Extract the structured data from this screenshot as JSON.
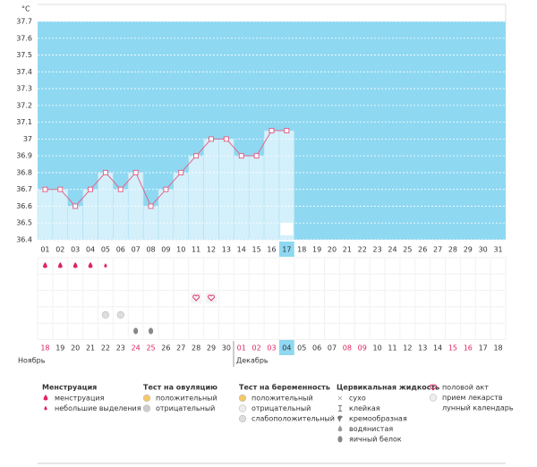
{
  "chart_data": {
    "type": "line",
    "y_label": "°C",
    "categories": [
      "01",
      "02",
      "03",
      "04",
      "05",
      "06",
      "07",
      "08",
      "09",
      "10",
      "11",
      "12",
      "13",
      "14",
      "15",
      "16",
      "17",
      "18",
      "19",
      "20",
      "21",
      "22",
      "23",
      "24",
      "25",
      "26",
      "27",
      "28",
      "29",
      "30",
      "31"
    ],
    "values": [
      36.7,
      36.7,
      36.6,
      36.7,
      36.8,
      36.7,
      36.8,
      36.6,
      36.7,
      36.8,
      36.9,
      37.0,
      37.0,
      36.9,
      36.9,
      37.05,
      37.05,
      null,
      null,
      null,
      null,
      null,
      null,
      null,
      null,
      null,
      null,
      null,
      null,
      null,
      null
    ],
    "color": "#e0668a",
    "bar_color": "#d4f0fb",
    "background": "#8fd8f2",
    "ylim": [
      36.4,
      37.7
    ],
    "yticks": [
      36.4,
      36.5,
      36.6,
      36.7,
      36.8,
      36.9,
      37,
      37.1,
      37.2,
      37.3,
      37.4,
      37.5,
      37.6,
      37.7
    ],
    "grid": true,
    "today_index": 16,
    "dates": [
      {
        "label": "18",
        "holiday": true
      },
      {
        "label": "19"
      },
      {
        "label": "20"
      },
      {
        "label": "21"
      },
      {
        "label": "22"
      },
      {
        "label": "23"
      },
      {
        "label": "24",
        "holiday": true
      },
      {
        "label": "25",
        "holiday": true
      },
      {
        "label": "26"
      },
      {
        "label": "27"
      },
      {
        "label": "28"
      },
      {
        "label": "29"
      },
      {
        "label": "30"
      },
      {
        "label": "01",
        "holiday": true
      },
      {
        "label": "02",
        "holiday": true
      },
      {
        "label": "03",
        "holiday": true
      },
      {
        "label": "04"
      },
      {
        "label": "05"
      },
      {
        "label": "06"
      },
      {
        "label": "07"
      },
      {
        "label": "08",
        "holiday": true
      },
      {
        "label": "09",
        "holiday": true
      },
      {
        "label": "10"
      },
      {
        "label": "11"
      },
      {
        "label": "12"
      },
      {
        "label": "13"
      },
      {
        "label": "14"
      },
      {
        "label": "15",
        "holiday": true
      },
      {
        "label": "16",
        "holiday": true
      },
      {
        "label": "17"
      },
      {
        "label": "18"
      }
    ],
    "months": [
      "Ноябрь",
      "Декабрь"
    ]
  },
  "legend": [
    {
      "title": "Менструация",
      "items": [
        "менструация",
        "небольшие выделения"
      ]
    },
    {
      "title": "Тест на овуляцию",
      "items": [
        "положительный",
        "отрицательный"
      ]
    },
    {
      "title": "Тест на беременность",
      "items": [
        "положительный",
        "отрицательный",
        "слабоположительный"
      ]
    },
    {
      "title": "Цервикальная жидкость",
      "items": [
        "сухо",
        "клейкая",
        "кремообразная",
        "водянистая",
        "яичный белок"
      ]
    },
    {
      "items": [
        "половой акт",
        "прием лекарств",
        "лунный календарь"
      ]
    }
  ]
}
